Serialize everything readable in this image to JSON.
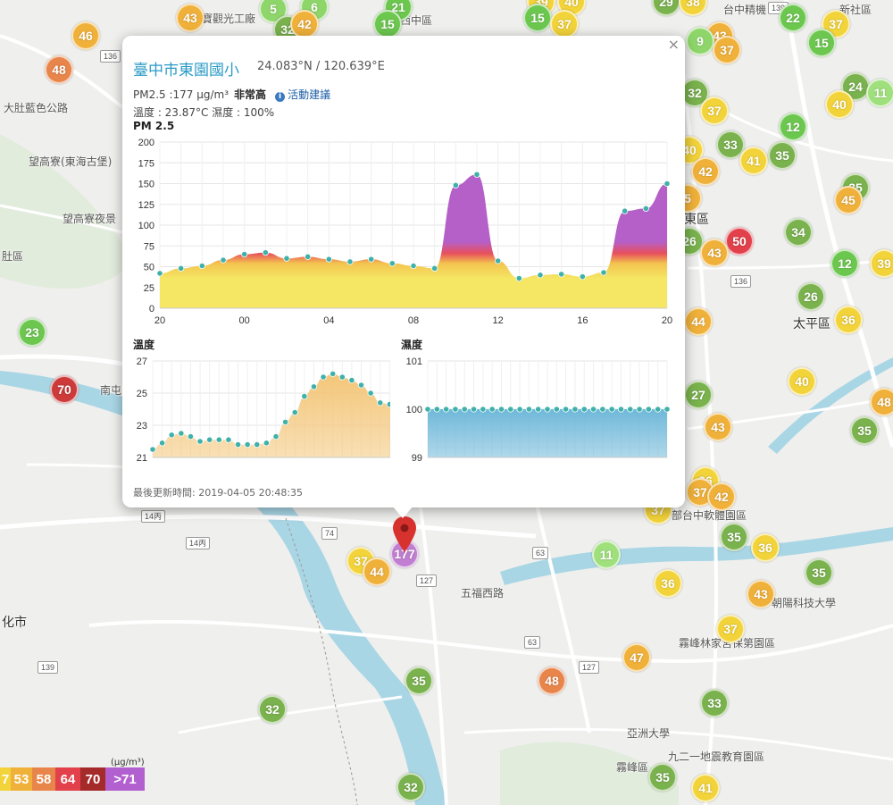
{
  "popup": {
    "site_name": "臺中市東園國小",
    "coords": "24.083°N / 120.639°E",
    "pm_text": "PM2.5 :177 μg/m³",
    "pm_level": "非常高",
    "advice_icon": "info-icon",
    "advice_label": "活動建議",
    "weather_text": "溫度 : 23.87°C 濕度 : 100%",
    "pm_chart_title": "PM 2.5",
    "temp_chart_title": "溫度",
    "hum_chart_title": "濕度",
    "last_updated": "最後更新時間: 2019-04-05 20:48:35",
    "close_icon": "close-icon"
  },
  "chart_data": [
    {
      "type": "area",
      "title": "PM 2.5",
      "x_tick_labels": [
        "20",
        "00",
        "04",
        "08",
        "12",
        "16",
        "20"
      ],
      "ylim": [
        0,
        200
      ],
      "y_ticks": [
        0,
        25,
        50,
        75,
        100,
        125,
        150,
        175,
        200
      ],
      "grid": true,
      "values": [
        42,
        48,
        51,
        58,
        65,
        67,
        60,
        62,
        59,
        56,
        59,
        54,
        51,
        48,
        148,
        161,
        57,
        36,
        40,
        41,
        38,
        43,
        117,
        120,
        150
      ],
      "colors": [
        "#f5e663",
        "#f3c34f",
        "#e8505b",
        "#b55fc8"
      ]
    },
    {
      "type": "area",
      "title": "溫度",
      "ylim": [
        21,
        27
      ],
      "y_ticks": [
        21,
        23,
        25,
        27
      ],
      "grid": true,
      "values": [
        21.5,
        21.9,
        22.4,
        22.5,
        22.3,
        22.0,
        22.1,
        22.1,
        22.1,
        21.8,
        21.8,
        21.8,
        21.9,
        22.3,
        23.2,
        23.8,
        24.8,
        25.4,
        26.0,
        26.2,
        26.0,
        25.8,
        25.5,
        25.0,
        24.4,
        24.3,
        24.2
      ],
      "color": "#f3c679"
    },
    {
      "type": "area",
      "title": "濕度",
      "ylim": [
        99,
        101
      ],
      "y_ticks": [
        99,
        100,
        101
      ],
      "grid": true,
      "values": [
        100,
        100,
        100,
        100,
        100,
        100,
        100,
        100,
        100,
        100,
        100,
        100,
        100,
        100,
        100,
        100,
        100,
        100,
        100,
        100,
        100,
        100,
        100,
        100,
        100,
        100,
        100
      ],
      "color": "#6fb8d9"
    }
  ],
  "markers": [
    {
      "v": "46",
      "c": "#f0b13a"
    },
    {
      "v": "48",
      "c": "#e8854a"
    },
    {
      "v": "43",
      "c": "#f0b13a"
    },
    {
      "v": "5",
      "c": "#8ed66a"
    },
    {
      "v": "6",
      "c": "#8ed66a"
    },
    {
      "v": "21",
      "c": "#6cc74f"
    },
    {
      "v": "15",
      "c": "#6cc74f"
    },
    {
      "v": "32",
      "c": "#7ab24e"
    },
    {
      "v": "42",
      "c": "#f0b13a"
    },
    {
      "v": "39",
      "c": "#f2d33a"
    },
    {
      "v": "40",
      "c": "#f2d33a"
    },
    {
      "v": "15",
      "c": "#6cc74f"
    },
    {
      "v": "37",
      "c": "#f2d33a"
    },
    {
      "v": "29",
      "c": "#7ab24e"
    },
    {
      "v": "38",
      "c": "#f2d33a"
    },
    {
      "v": "22",
      "c": "#6cc74f"
    },
    {
      "v": "37",
      "c": "#f2d33a"
    },
    {
      "v": "15",
      "c": "#6cc74f"
    },
    {
      "v": "43",
      "c": "#f0b13a"
    },
    {
      "v": "9",
      "c": "#8ed66a"
    },
    {
      "v": "37",
      "c": "#f0b13a"
    },
    {
      "v": "32",
      "c": "#7ab24e"
    },
    {
      "v": "37",
      "c": "#f2d33a"
    },
    {
      "v": "24",
      "c": "#7ab24e"
    },
    {
      "v": "11",
      "c": "#9fe07c"
    },
    {
      "v": "40",
      "c": "#f2d33a"
    },
    {
      "v": "12",
      "c": "#6cc74f"
    },
    {
      "v": "33",
      "c": "#7ab24e"
    },
    {
      "v": "41",
      "c": "#f2d33a"
    },
    {
      "v": "35",
      "c": "#7ab24e"
    },
    {
      "v": "40",
      "c": "#f2d33a"
    },
    {
      "v": "42",
      "c": "#f0b13a"
    },
    {
      "v": "35",
      "c": "#7ab24e"
    },
    {
      "v": "45",
      "c": "#f0b13a"
    },
    {
      "v": "5",
      "c": "#f0b13a"
    },
    {
      "v": "26",
      "c": "#7ab24e"
    },
    {
      "v": "50",
      "c": "#e2404a"
    },
    {
      "v": "43",
      "c": "#f0b13a"
    },
    {
      "v": "34",
      "c": "#7ab24e"
    },
    {
      "v": "12",
      "c": "#6cc74f"
    },
    {
      "v": "39",
      "c": "#f2d33a"
    },
    {
      "v": "26",
      "c": "#7ab24e"
    },
    {
      "v": "36",
      "c": "#f2d33a"
    },
    {
      "v": "44",
      "c": "#f0b13a"
    },
    {
      "v": "23",
      "c": "#6cc74f"
    },
    {
      "v": "70",
      "c": "#cc3a3a"
    },
    {
      "v": "27",
      "c": "#7ab24e"
    },
    {
      "v": "40",
      "c": "#f2d33a"
    },
    {
      "v": "48",
      "c": "#f0b13a"
    },
    {
      "v": "43",
      "c": "#f0b13a"
    },
    {
      "v": "35",
      "c": "#7ab24e"
    },
    {
      "v": "36",
      "c": "#f2d33a"
    },
    {
      "v": "37",
      "c": "#f0b13a"
    },
    {
      "v": "42",
      "c": "#f0b13a"
    },
    {
      "v": "37",
      "c": "#f2d33a"
    },
    {
      "v": "35",
      "c": "#7ab24e"
    },
    {
      "v": "36",
      "c": "#f2d33a"
    },
    {
      "v": "35",
      "c": "#7ab24e"
    },
    {
      "v": "37",
      "c": "#f2d33a"
    },
    {
      "v": "44",
      "c": "#f0b13a"
    },
    {
      "v": "177",
      "c": "#c07fd0"
    },
    {
      "v": "11",
      "c": "#9fe07c"
    },
    {
      "v": "36",
      "c": "#f2d33a"
    },
    {
      "v": "43",
      "c": "#f0b13a"
    },
    {
      "v": "37",
      "c": "#f2d33a"
    },
    {
      "v": "47",
      "c": "#f0b13a"
    },
    {
      "v": "35",
      "c": "#7ab24e"
    },
    {
      "v": "48",
      "c": "#e8854a"
    },
    {
      "v": "32",
      "c": "#7ab24e"
    },
    {
      "v": "33",
      "c": "#7ab24e"
    },
    {
      "v": "32",
      "c": "#7ab24e"
    },
    {
      "v": "35",
      "c": "#7ab24e"
    },
    {
      "v": "41",
      "c": "#f2d33a"
    }
  ],
  "map_labels": [
    {
      "t": "大肚藍色公路"
    },
    {
      "t": "望高寮(東海古堡)"
    },
    {
      "t": "望高寮夜景"
    },
    {
      "t": "肚區"
    },
    {
      "t": "化市"
    },
    {
      "t": "南屯區"
    },
    {
      "t": "東區"
    },
    {
      "t": "太平區"
    },
    {
      "t": "新社區"
    },
    {
      "t": "霧峰林家宮保第園區"
    },
    {
      "t": "亞洲大學"
    },
    {
      "t": "九二一地震教育園區"
    },
    {
      "t": "朝陽科技大學"
    },
    {
      "t": "部台中軟體園區"
    },
    {
      "t": "西中區"
    },
    {
      "t": "台中精機"
    },
    {
      "t": "寶觀光工廠"
    },
    {
      "t": "五福西路"
    },
    {
      "t": "霧峰區"
    }
  ],
  "road_shields": [
    "136",
    "136",
    "139",
    "127",
    "127",
    "63",
    "63",
    "74",
    "14丙",
    "14丙",
    "139"
  ],
  "legend": {
    "unit": "(μg/m³)",
    "cells": [
      {
        "label": "7",
        "c": "#f2d33a"
      },
      {
        "label": "53",
        "c": "#f0b13a"
      },
      {
        "label": "58",
        "c": "#e8854a"
      },
      {
        "label": "64",
        "c": "#e2404a"
      },
      {
        "label": "70",
        "c": "#a52a2a"
      },
      {
        "label": ">71",
        "c": "#b25fd0"
      }
    ]
  },
  "active_pin": "map-pin-icon"
}
